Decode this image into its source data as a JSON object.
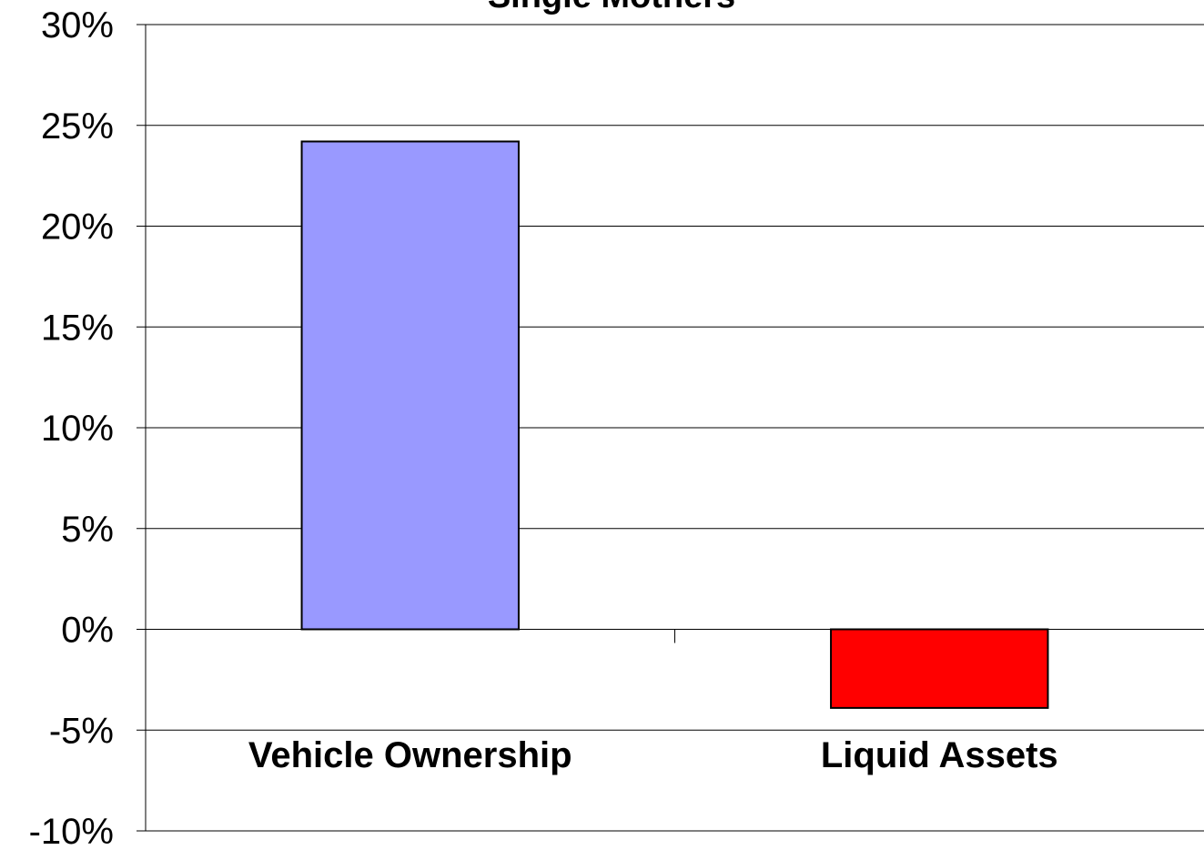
{
  "chart_data": {
    "type": "bar",
    "title": "Single Mothers",
    "categories": [
      "Vehicle Ownership",
      "Liquid Assets"
    ],
    "values": [
      24.2,
      -3.9
    ],
    "colors": [
      "#9999ff",
      "#ff0000"
    ],
    "ylim": [
      -10,
      30
    ],
    "yticks": [
      {
        "value": -10,
        "label": "-10%"
      },
      {
        "value": -5,
        "label": "-5%"
      },
      {
        "value": 0,
        "label": "0%"
      },
      {
        "value": 5,
        "label": "5%"
      },
      {
        "value": 10,
        "label": "10%"
      },
      {
        "value": 15,
        "label": "15%"
      },
      {
        "value": 20,
        "label": "20%"
      },
      {
        "value": 25,
        "label": "25%"
      },
      {
        "value": 30,
        "label": "30%"
      }
    ],
    "grid": true
  }
}
